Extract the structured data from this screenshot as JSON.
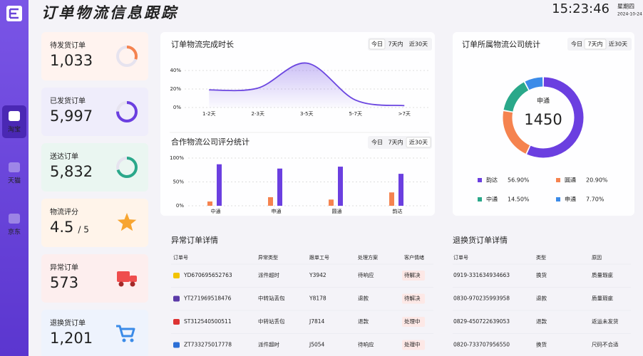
{
  "header": {
    "title": "订单物流信息跟踪",
    "time": "15:23:46",
    "weekday": "星期四",
    "date": "2024-10-24"
  },
  "sidebar": [
    "淘宝",
    "天猫",
    "京东"
  ],
  "cards": [
    {
      "label": "待发货订单",
      "value": "1,033"
    },
    {
      "label": "已发货订单",
      "value": "5,997"
    },
    {
      "label": "送达订单",
      "value": "5,832"
    },
    {
      "label": "物流评分",
      "value": "4.5",
      "suffix": "/ 5"
    },
    {
      "label": "异常订单",
      "value": "573"
    },
    {
      "label": "退换货订单",
      "value": "1,201"
    }
  ],
  "chart_data": [
    {
      "type": "line",
      "title": "订单物流完成时长",
      "tabs": [
        "今日",
        "7天内",
        "近30天"
      ],
      "categories": [
        "1-2天",
        "2-3天",
        "3-5天",
        "5-7天",
        ">7天"
      ],
      "values": [
        19,
        21,
        48,
        8,
        2
      ],
      "color": "#6b46e0",
      "ylim": [
        0,
        50
      ],
      "yticks": [
        {
          "value": 0,
          "label": "0%"
        },
        {
          "value": 20,
          "label": "20%"
        },
        {
          "value": 40,
          "label": "40%"
        }
      ],
      "grid": true
    },
    {
      "type": "bar",
      "title": "合作物流公司评分统计",
      "tabs": [
        "今日",
        "7天内",
        "近30天"
      ],
      "categories": [
        "中通",
        "申通",
        "圆通",
        "韵达"
      ],
      "series": [
        {
          "color": "#f5834f",
          "values": [
            9,
            18,
            13,
            28
          ]
        },
        {
          "color": "#6b3fe0",
          "values": [
            87,
            78,
            82,
            67
          ]
        }
      ],
      "ylim": [
        0,
        100
      ],
      "yticks": [
        {
          "value": 0,
          "label": "0%"
        },
        {
          "value": 50,
          "label": "50%"
        },
        {
          "value": 100,
          "label": "100%"
        }
      ],
      "grid": true
    },
    {
      "type": "pie",
      "title": "订单所属物流公司统计",
      "tabs": [
        "今日",
        "7天内",
        "近30天"
      ],
      "center_label": "申通",
      "center_value": 1450,
      "categories": [
        "韵达",
        "圆通",
        "中通",
        "申通"
      ],
      "values": [
        56.9,
        20.9,
        14.5,
        7.7
      ],
      "value_labels": [
        "56.90%",
        "20.90%",
        "14.50%",
        "7.70%"
      ],
      "colors": [
        "#6b3fe0",
        "#f5834f",
        "#2aa88a",
        "#3b8be8"
      ]
    }
  ],
  "tables": {
    "exceptions": {
      "title": "异常订单详情",
      "columns": [
        "订单号",
        "异常类型",
        "跟单工号",
        "处理方案",
        "客户情绪"
      ],
      "rows": [
        [
          "YD670695652763",
          "派件超时",
          "Y3942",
          "待响应",
          "待解决"
        ],
        [
          "YT271969518476",
          "中转站丢包",
          "Y8178",
          "退款",
          "待解决"
        ],
        [
          "ST312540500511",
          "中转站丢包",
          "J7814",
          "退款",
          "处理中"
        ],
        [
          "ZT733275017778",
          "派件超时",
          "J5054",
          "待响应",
          "处理中"
        ]
      ]
    },
    "returns": {
      "title": "退换货订单详情",
      "columns": [
        "订单号",
        "类型",
        "原因"
      ],
      "rows": [
        [
          "0919-331634934663",
          "换货",
          "质量瑕疵"
        ],
        [
          "0830-970235993958",
          "退款",
          "质量瑕疵"
        ],
        [
          "0829-450722639053",
          "退款",
          "返运未发货"
        ],
        [
          "0820-733707956550",
          "换货",
          "尺码不合适"
        ]
      ]
    }
  }
}
